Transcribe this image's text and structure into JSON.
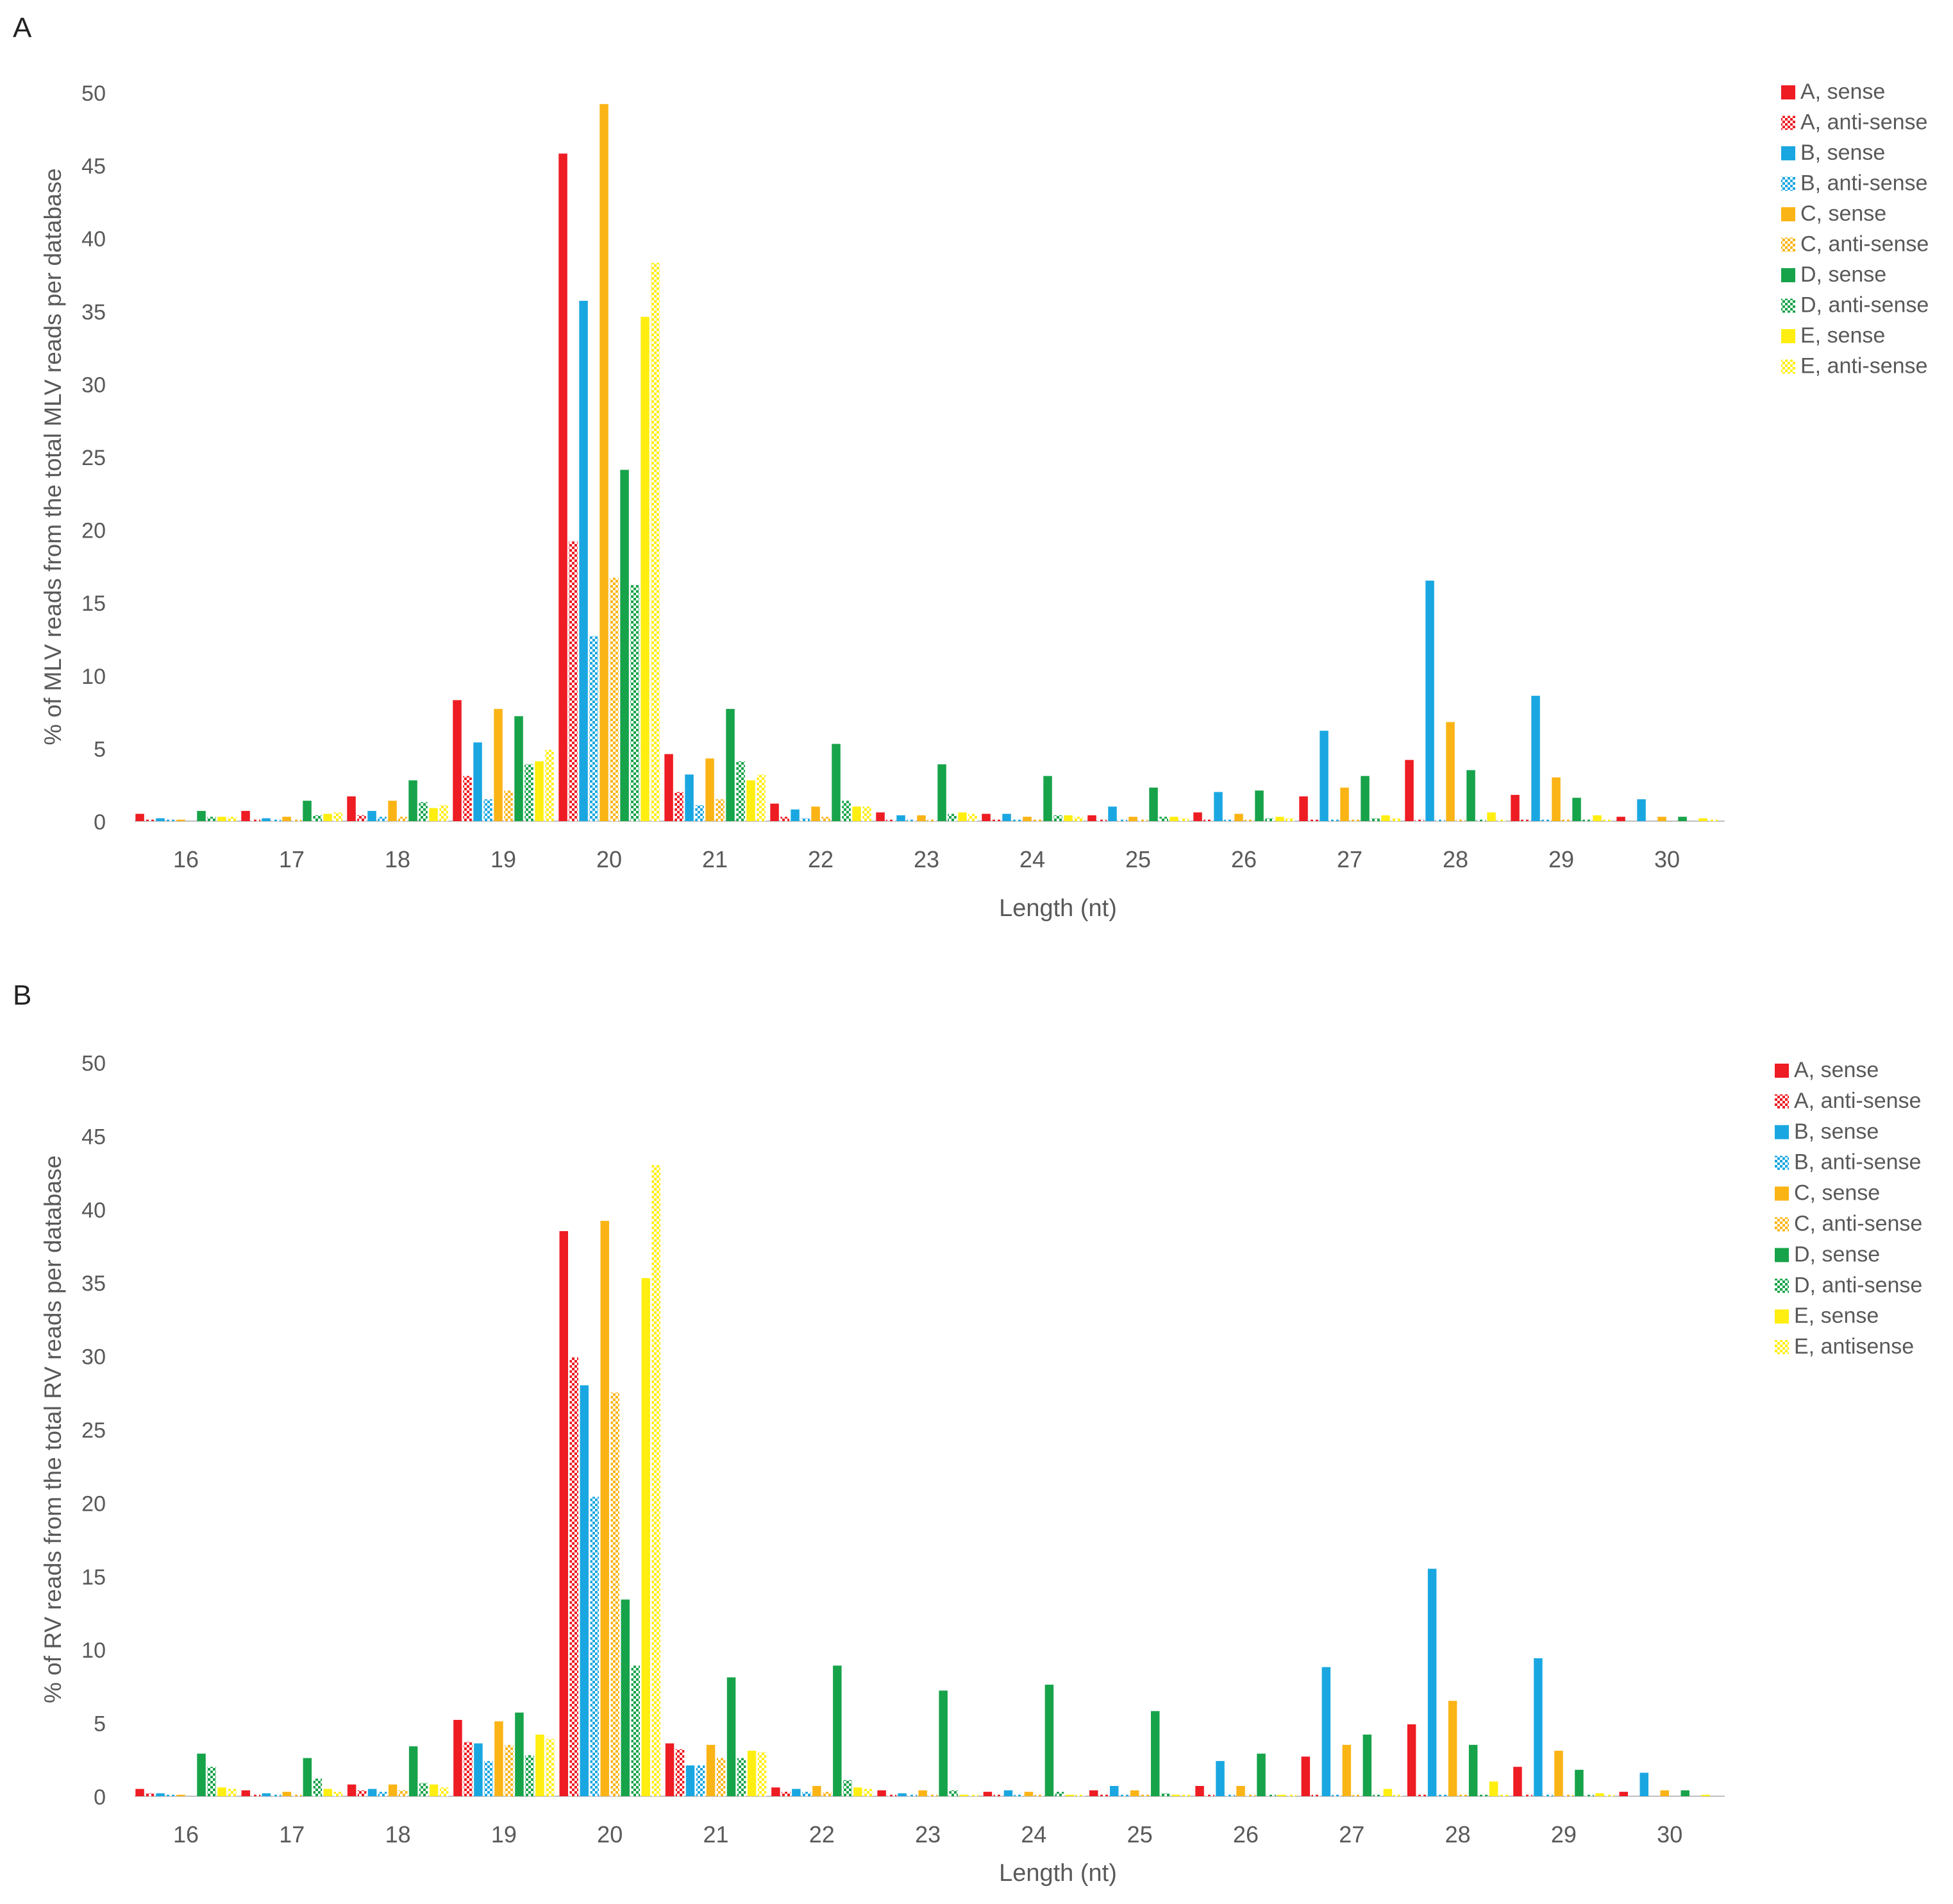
{
  "colors": {
    "A": "#ee1c23",
    "B": "#1aa7e1",
    "C": "#fbb416",
    "D": "#17a34a",
    "E": "#ffee10"
  },
  "chart_data": [
    {
      "type": "bar",
      "panel_label": "A",
      "xlabel": "Length (nt)",
      "ylabel": "% of MLV reads from the total MLV reads per database",
      "ylim": [
        0,
        50
      ],
      "yticks": [
        "0",
        "5",
        "10",
        "15",
        "20",
        "25",
        "30",
        "35",
        "40",
        "45",
        "50"
      ],
      "categories": [
        "16",
        "17",
        "18",
        "19",
        "20",
        "21",
        "22",
        "23",
        "24",
        "25",
        "26",
        "27",
        "28",
        "29",
        "30"
      ],
      "legend_position": "top-right",
      "series": [
        {
          "name": "A, sense",
          "group": "A",
          "pattern": "solid",
          "values": [
            0.5,
            0.7,
            1.7,
            8.3,
            45.8,
            4.6,
            1.2,
            0.6,
            0.5,
            0.4,
            0.6,
            1.7,
            4.2,
            1.8,
            0.3
          ]
        },
        {
          "name": "A, anti-sense",
          "group": "A",
          "pattern": "checker",
          "values": [
            0.1,
            0.1,
            0.4,
            3.1,
            19.2,
            2.0,
            0.3,
            0.1,
            0.1,
            0.1,
            0.1,
            0.1,
            0.1,
            0.1,
            0.0
          ]
        },
        {
          "name": "B, sense",
          "group": "B",
          "pattern": "solid",
          "values": [
            0.2,
            0.2,
            0.7,
            5.4,
            35.7,
            3.2,
            0.8,
            0.4,
            0.5,
            1.0,
            2.0,
            6.2,
            16.5,
            8.6,
            1.5
          ]
        },
        {
          "name": "B, anti-sense",
          "group": "B",
          "pattern": "checker",
          "values": [
            0.1,
            0.1,
            0.3,
            1.5,
            12.7,
            1.1,
            0.2,
            0.1,
            0.1,
            0.1,
            0.1,
            0.1,
            0.1,
            0.1,
            0.0
          ]
        },
        {
          "name": "C, sense",
          "group": "C",
          "pattern": "solid",
          "values": [
            0.1,
            0.3,
            1.4,
            7.7,
            49.2,
            4.3,
            1.0,
            0.4,
            0.3,
            0.3,
            0.5,
            2.3,
            6.8,
            3.0,
            0.3
          ]
        },
        {
          "name": "C, anti-sense",
          "group": "C",
          "pattern": "checker",
          "values": [
            0.0,
            0.1,
            0.3,
            2.1,
            16.7,
            1.5,
            0.3,
            0.1,
            0.1,
            0.1,
            0.1,
            0.1,
            0.1,
            0.1,
            0.0
          ]
        },
        {
          "name": "D, sense",
          "group": "D",
          "pattern": "solid",
          "values": [
            0.7,
            1.4,
            2.8,
            7.2,
            24.1,
            7.7,
            5.3,
            3.9,
            3.1,
            2.3,
            2.1,
            3.1,
            3.5,
            1.6,
            0.3
          ]
        },
        {
          "name": "D, anti-sense",
          "group": "D",
          "pattern": "checker",
          "values": [
            0.3,
            0.4,
            1.3,
            3.9,
            16.2,
            4.1,
            1.4,
            0.5,
            0.4,
            0.3,
            0.2,
            0.2,
            0.1,
            0.1,
            0.0
          ]
        },
        {
          "name": "E, sense",
          "group": "E",
          "pattern": "solid",
          "values": [
            0.3,
            0.5,
            0.9,
            4.1,
            34.6,
            2.8,
            1.0,
            0.6,
            0.4,
            0.3,
            0.3,
            0.4,
            0.6,
            0.4,
            0.2
          ]
        },
        {
          "name": "E, anti-sense",
          "group": "E",
          "pattern": "checker",
          "values": [
            0.3,
            0.6,
            1.1,
            4.9,
            38.3,
            3.2,
            1.0,
            0.5,
            0.3,
            0.2,
            0.2,
            0.2,
            0.1,
            0.1,
            0.1
          ]
        }
      ]
    },
    {
      "type": "bar",
      "panel_label": "B",
      "xlabel": "Length (nt)",
      "ylabel": "% of RV reads from the total RV reads per  database",
      "ylim": [
        0,
        50
      ],
      "yticks": [
        "0",
        "5",
        "10",
        "15",
        "20",
        "25",
        "30",
        "35",
        "40",
        "45",
        "50"
      ],
      "categories": [
        "16",
        "17",
        "18",
        "19",
        "20",
        "21",
        "22",
        "23",
        "24",
        "25",
        "26",
        "27",
        "28",
        "29",
        "30"
      ],
      "legend_position": "top-right",
      "series": [
        {
          "name": "A, sense",
          "group": "A",
          "pattern": "solid",
          "values": [
            0.5,
            0.4,
            0.8,
            5.2,
            38.5,
            3.6,
            0.6,
            0.4,
            0.3,
            0.4,
            0.7,
            2.7,
            4.9,
            2.0,
            0.3
          ]
        },
        {
          "name": "A, anti-sense",
          "group": "A",
          "pattern": "checker",
          "values": [
            0.2,
            0.1,
            0.4,
            3.7,
            29.9,
            3.2,
            0.3,
            0.1,
            0.1,
            0.1,
            0.1,
            0.1,
            0.1,
            0.1,
            0.0
          ]
        },
        {
          "name": "B, sense",
          "group": "B",
          "pattern": "solid",
          "values": [
            0.2,
            0.2,
            0.5,
            3.6,
            28.0,
            2.1,
            0.5,
            0.2,
            0.4,
            0.7,
            2.4,
            8.8,
            15.5,
            9.4,
            1.6
          ]
        },
        {
          "name": "B, anti-sense",
          "group": "B",
          "pattern": "checker",
          "values": [
            0.1,
            0.1,
            0.3,
            2.4,
            20.4,
            2.1,
            0.3,
            0.1,
            0.1,
            0.1,
            0.1,
            0.1,
            0.1,
            0.1,
            0.0
          ]
        },
        {
          "name": "C, sense",
          "group": "C",
          "pattern": "solid",
          "values": [
            0.1,
            0.3,
            0.8,
            5.1,
            39.2,
            3.5,
            0.7,
            0.4,
            0.3,
            0.4,
            0.7,
            3.5,
            6.5,
            3.1,
            0.4
          ]
        },
        {
          "name": "C, anti-sense",
          "group": "C",
          "pattern": "checker",
          "values": [
            0.0,
            0.1,
            0.4,
            3.5,
            27.5,
            2.6,
            0.3,
            0.1,
            0.1,
            0.1,
            0.1,
            0.1,
            0.1,
            0.1,
            0.0
          ]
        },
        {
          "name": "D, sense",
          "group": "D",
          "pattern": "solid",
          "values": [
            2.9,
            2.6,
            3.4,
            5.7,
            13.4,
            8.1,
            8.9,
            7.2,
            7.6,
            5.8,
            2.9,
            4.2,
            3.5,
            1.8,
            0.4
          ]
        },
        {
          "name": "D, anti-sense",
          "group": "D",
          "pattern": "checker",
          "values": [
            2.0,
            1.2,
            0.9,
            2.8,
            8.9,
            2.6,
            1.1,
            0.4,
            0.3,
            0.2,
            0.1,
            0.1,
            0.1,
            0.1,
            0.0
          ]
        },
        {
          "name": "E, sense",
          "group": "E",
          "pattern": "solid",
          "values": [
            0.6,
            0.5,
            0.8,
            4.2,
            35.3,
            3.1,
            0.6,
            0.1,
            0.1,
            0.1,
            0.1,
            0.5,
            1.0,
            0.2,
            0.1
          ]
        },
        {
          "name": "E, antisense",
          "group": "E",
          "pattern": "checker",
          "values": [
            0.5,
            0.3,
            0.6,
            3.9,
            43.0,
            3.0,
            0.5,
            0.1,
            0.1,
            0.1,
            0.1,
            0.1,
            0.1,
            0.1,
            0.0
          ]
        }
      ]
    }
  ]
}
